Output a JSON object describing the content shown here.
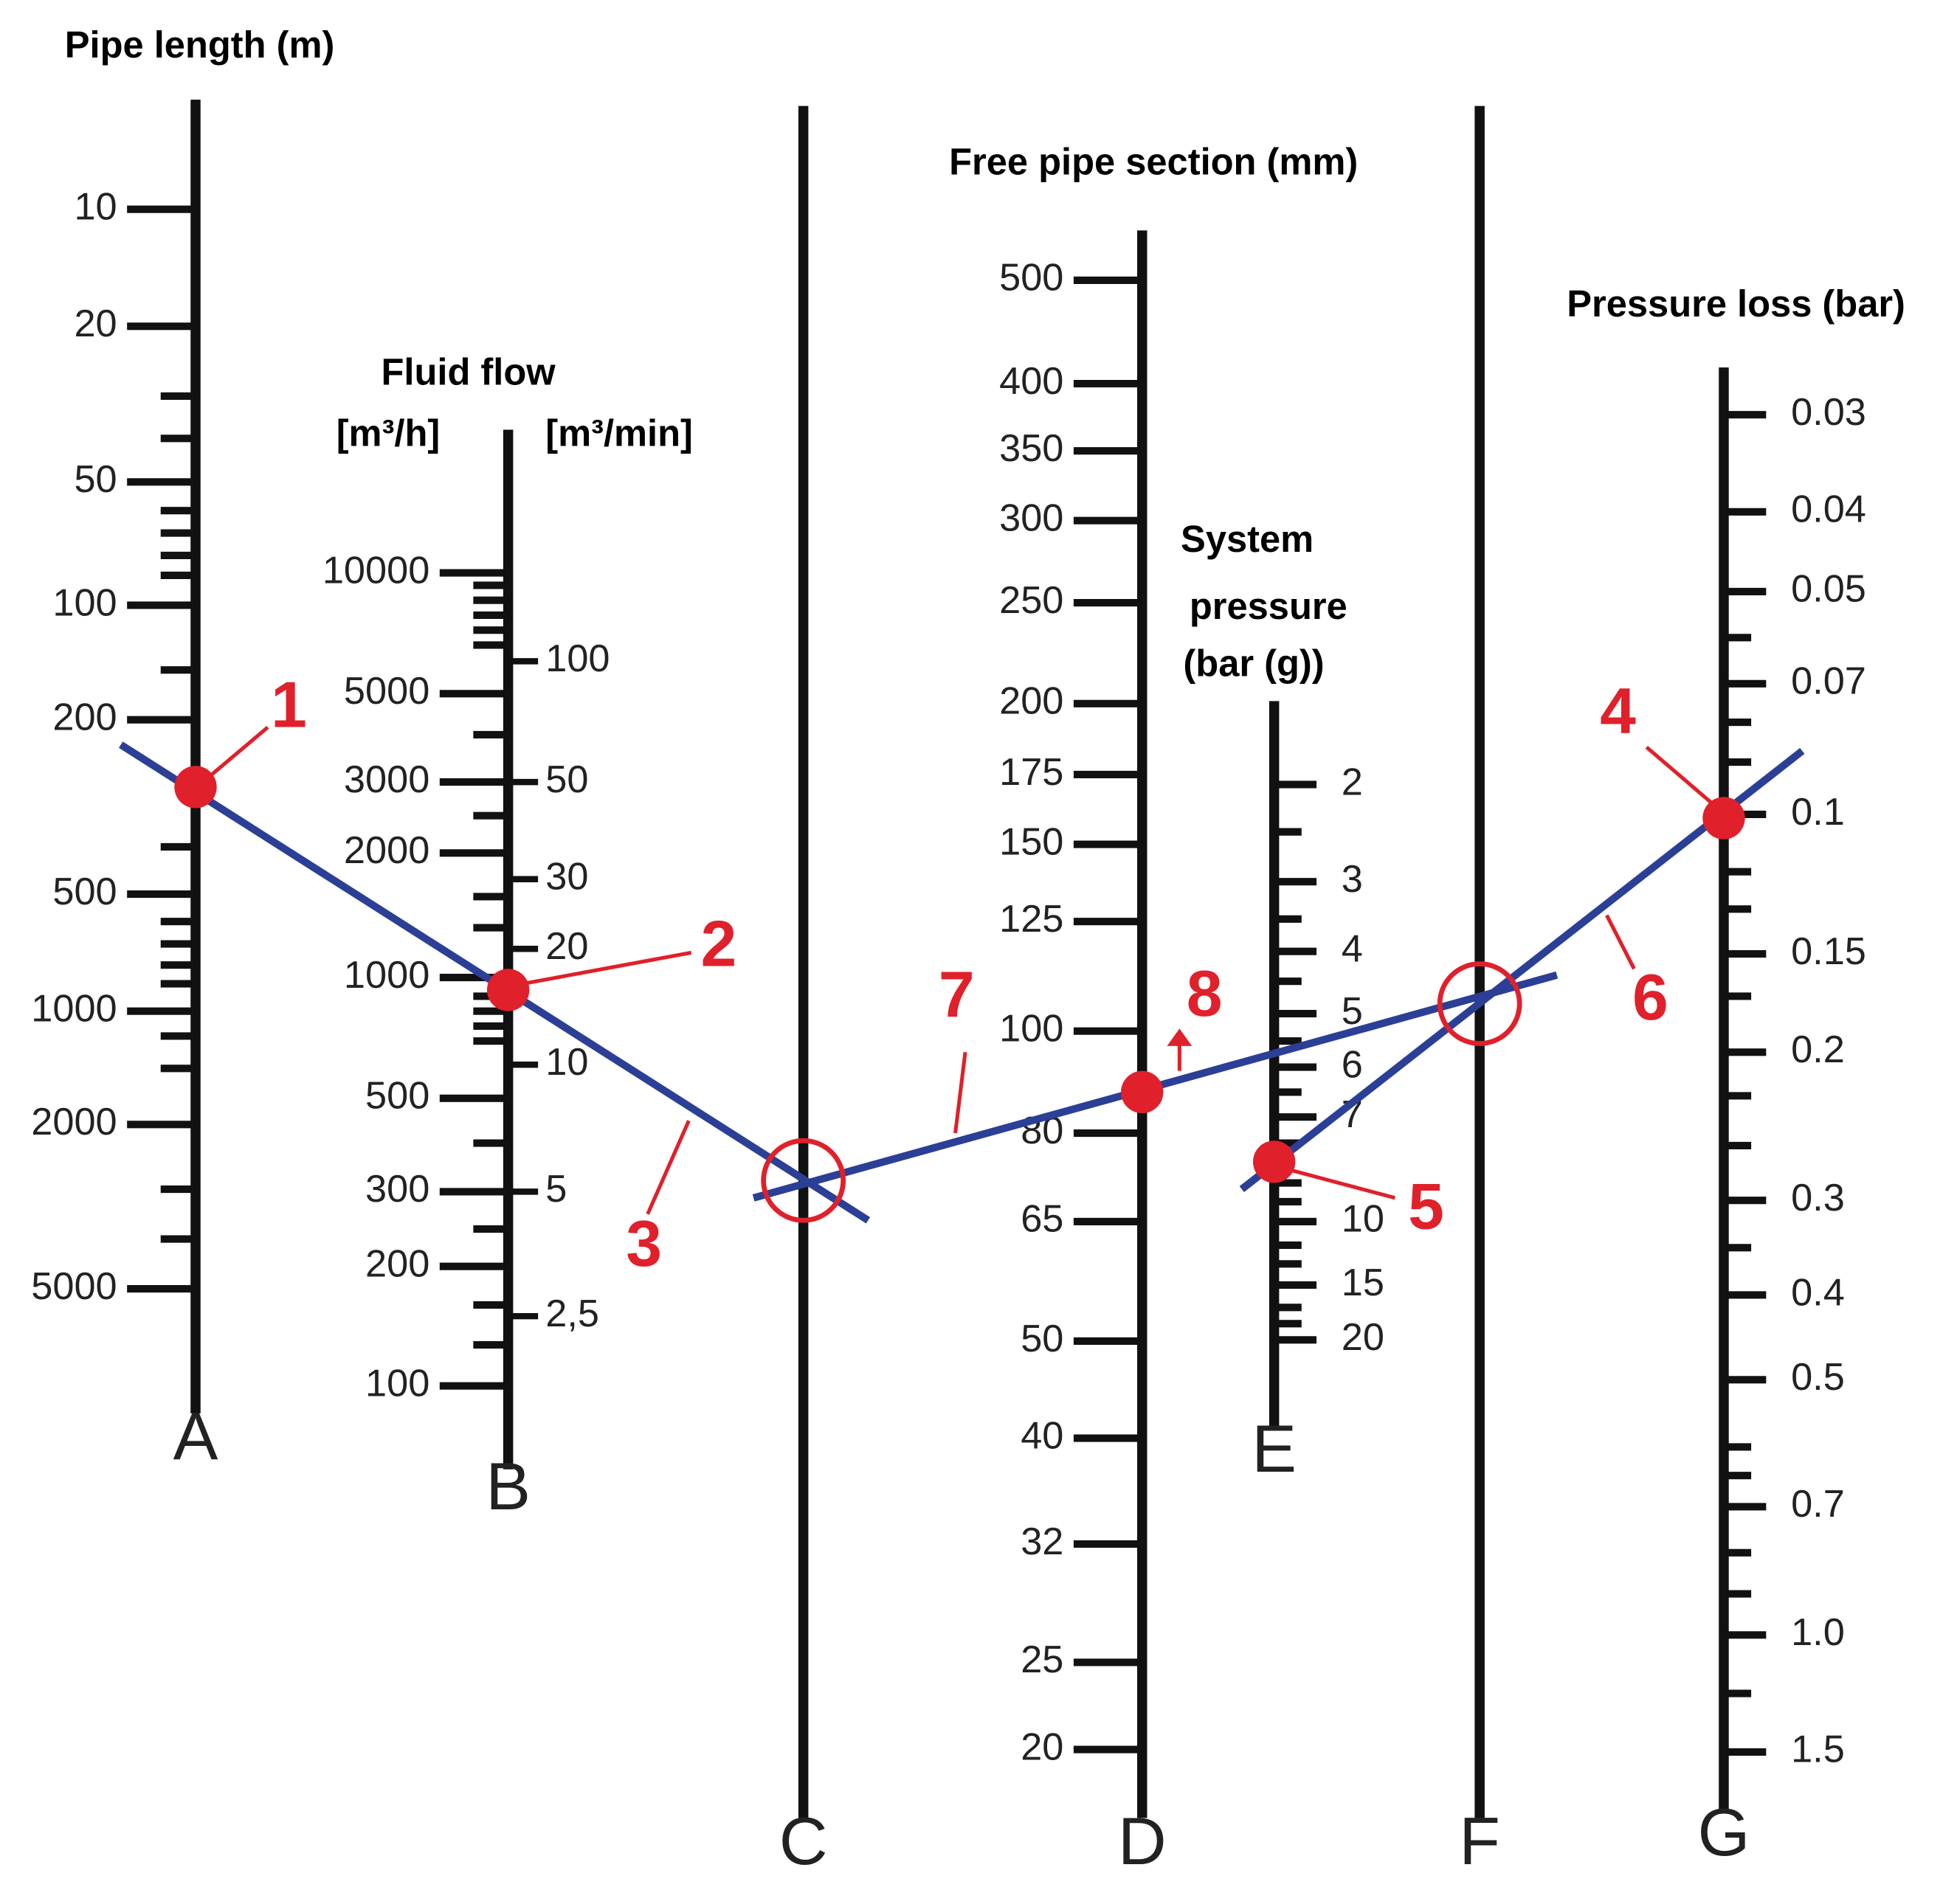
{
  "titles": {
    "pipe_length": "Pipe length (m)",
    "fluid_flow": "Fluid flow",
    "flow_unit_h": "[m³/h]",
    "flow_unit_min": "[m³/min]",
    "pipe_section": "Free pipe section (mm)",
    "system": "System",
    "pressure": "pressure",
    "bar_g": "(bar (g))",
    "pressure_loss": "Pressure loss (bar)"
  },
  "axes": {
    "A": {
      "letter": "A",
      "labels": [
        "10",
        "20",
        "50",
        "100",
        "200",
        "500",
        "1000",
        "2000",
        "5000"
      ]
    },
    "B": {
      "letter": "B",
      "labels": [
        "10000",
        "5000",
        "3000",
        "2000",
        "1000",
        "500",
        "300",
        "200",
        "100"
      ],
      "labels_right": [
        "100",
        "50",
        "30",
        "20",
        "10",
        "5",
        "2,5"
      ]
    },
    "C": {
      "letter": "C"
    },
    "D": {
      "letter": "D",
      "labels": [
        "500",
        "400",
        "350",
        "300",
        "250",
        "200",
        "175",
        "150",
        "125",
        "100",
        "80",
        "65",
        "50",
        "40",
        "32",
        "25",
        "20"
      ]
    },
    "E": {
      "letter": "E",
      "labels": [
        "2",
        "3",
        "4",
        "5",
        "6",
        "7",
        "10",
        "15",
        "20"
      ]
    },
    "F": {
      "letter": "F"
    },
    "G": {
      "letter": "G",
      "labels": [
        "0.03",
        "0.04",
        "0.05",
        "0.07",
        "0.1",
        "0.15",
        "0.2",
        "0.3",
        "0.4",
        "0.5",
        "0.7",
        "1.0",
        "1.5"
      ]
    }
  },
  "steps": [
    "1",
    "2",
    "3",
    "4",
    "5",
    "6",
    "7",
    "8"
  ]
}
